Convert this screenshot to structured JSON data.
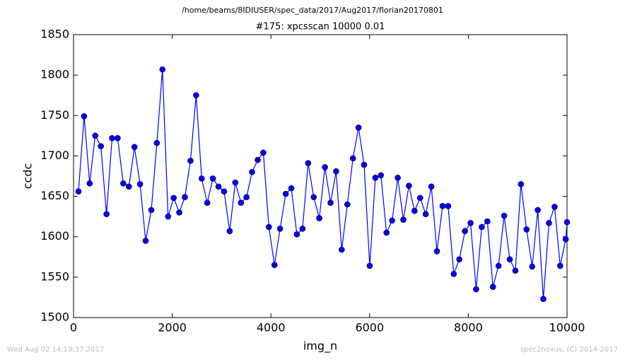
{
  "chart_data": {
    "type": "line",
    "suptitle": "/home/beams/8IDIUSER/spec_data/2017/Aug2017/florian20170801",
    "title": "#175: xpcsscan 10000 0.01",
    "xlabel": "img_n",
    "ylabel": "ccdc",
    "footer_left": "Wed Aug 02 14:19:37 2017",
    "footer_right": "spec2nexus, (C) 2014-2017",
    "xlim": [
      0,
      10000
    ],
    "xticks": [
      0,
      2000,
      4000,
      6000,
      8000,
      10000
    ],
    "ylim": [
      1500,
      1850
    ],
    "yticks": [
      1500,
      1550,
      1600,
      1650,
      1700,
      1750,
      1800,
      1850
    ],
    "x": [
      100,
      214,
      327,
      440,
      554,
      668,
      781,
      894,
      1008,
      1122,
      1235,
      1348,
      1462,
      1576,
      1689,
      1802,
      1916,
      2030,
      2143,
      2256,
      2370,
      2484,
      2597,
      2710,
      2824,
      2938,
      3051,
      3164,
      3278,
      3392,
      3505,
      3618,
      3732,
      3846,
      3959,
      4072,
      4186,
      4300,
      4413,
      4526,
      4640,
      4754,
      4867,
      4980,
      5094,
      5208,
      5321,
      5434,
      5548,
      5662,
      5775,
      5888,
      6002,
      6116,
      6229,
      6342,
      6456,
      6570,
      6683,
      6796,
      6910,
      7024,
      7137,
      7250,
      7364,
      7478,
      7591,
      7704,
      7818,
      7932,
      8045,
      8158,
      8272,
      8386,
      8499,
      8612,
      8726,
      8840,
      8953,
      9066,
      9180,
      9294,
      9407,
      9520,
      9634,
      9748,
      9861,
      9974,
      10000
    ],
    "series": [
      {
        "name": "ccdc",
        "color": "#0000ff",
        "values": [
          1656,
          1749,
          1666,
          1725,
          1712,
          1628,
          1722,
          1722,
          1666,
          1662,
          1711,
          1665,
          1595,
          1633,
          1716,
          1807,
          1625,
          1648,
          1630,
          1649,
          1694,
          1775,
          1672,
          1642,
          1672,
          1662,
          1656,
          1607,
          1667,
          1642,
          1649,
          1680,
          1695,
          1704,
          1612,
          1565,
          1610,
          1653,
          1660,
          1603,
          1610,
          1691,
          1649,
          1623,
          1686,
          1642,
          1681,
          1584,
          1640,
          1697,
          1735,
          1689,
          1564,
          1673,
          1676,
          1605,
          1620,
          1673,
          1621,
          1663,
          1632,
          1648,
          1628,
          1662,
          1582,
          1638,
          1638,
          1554,
          1572,
          1607,
          1617,
          1535,
          1612,
          1619,
          1538,
          1564,
          1626,
          1572,
          1558,
          1665,
          1609,
          1563,
          1633,
          1523,
          1617,
          1637,
          1564,
          1597,
          1618
        ]
      }
    ]
  }
}
